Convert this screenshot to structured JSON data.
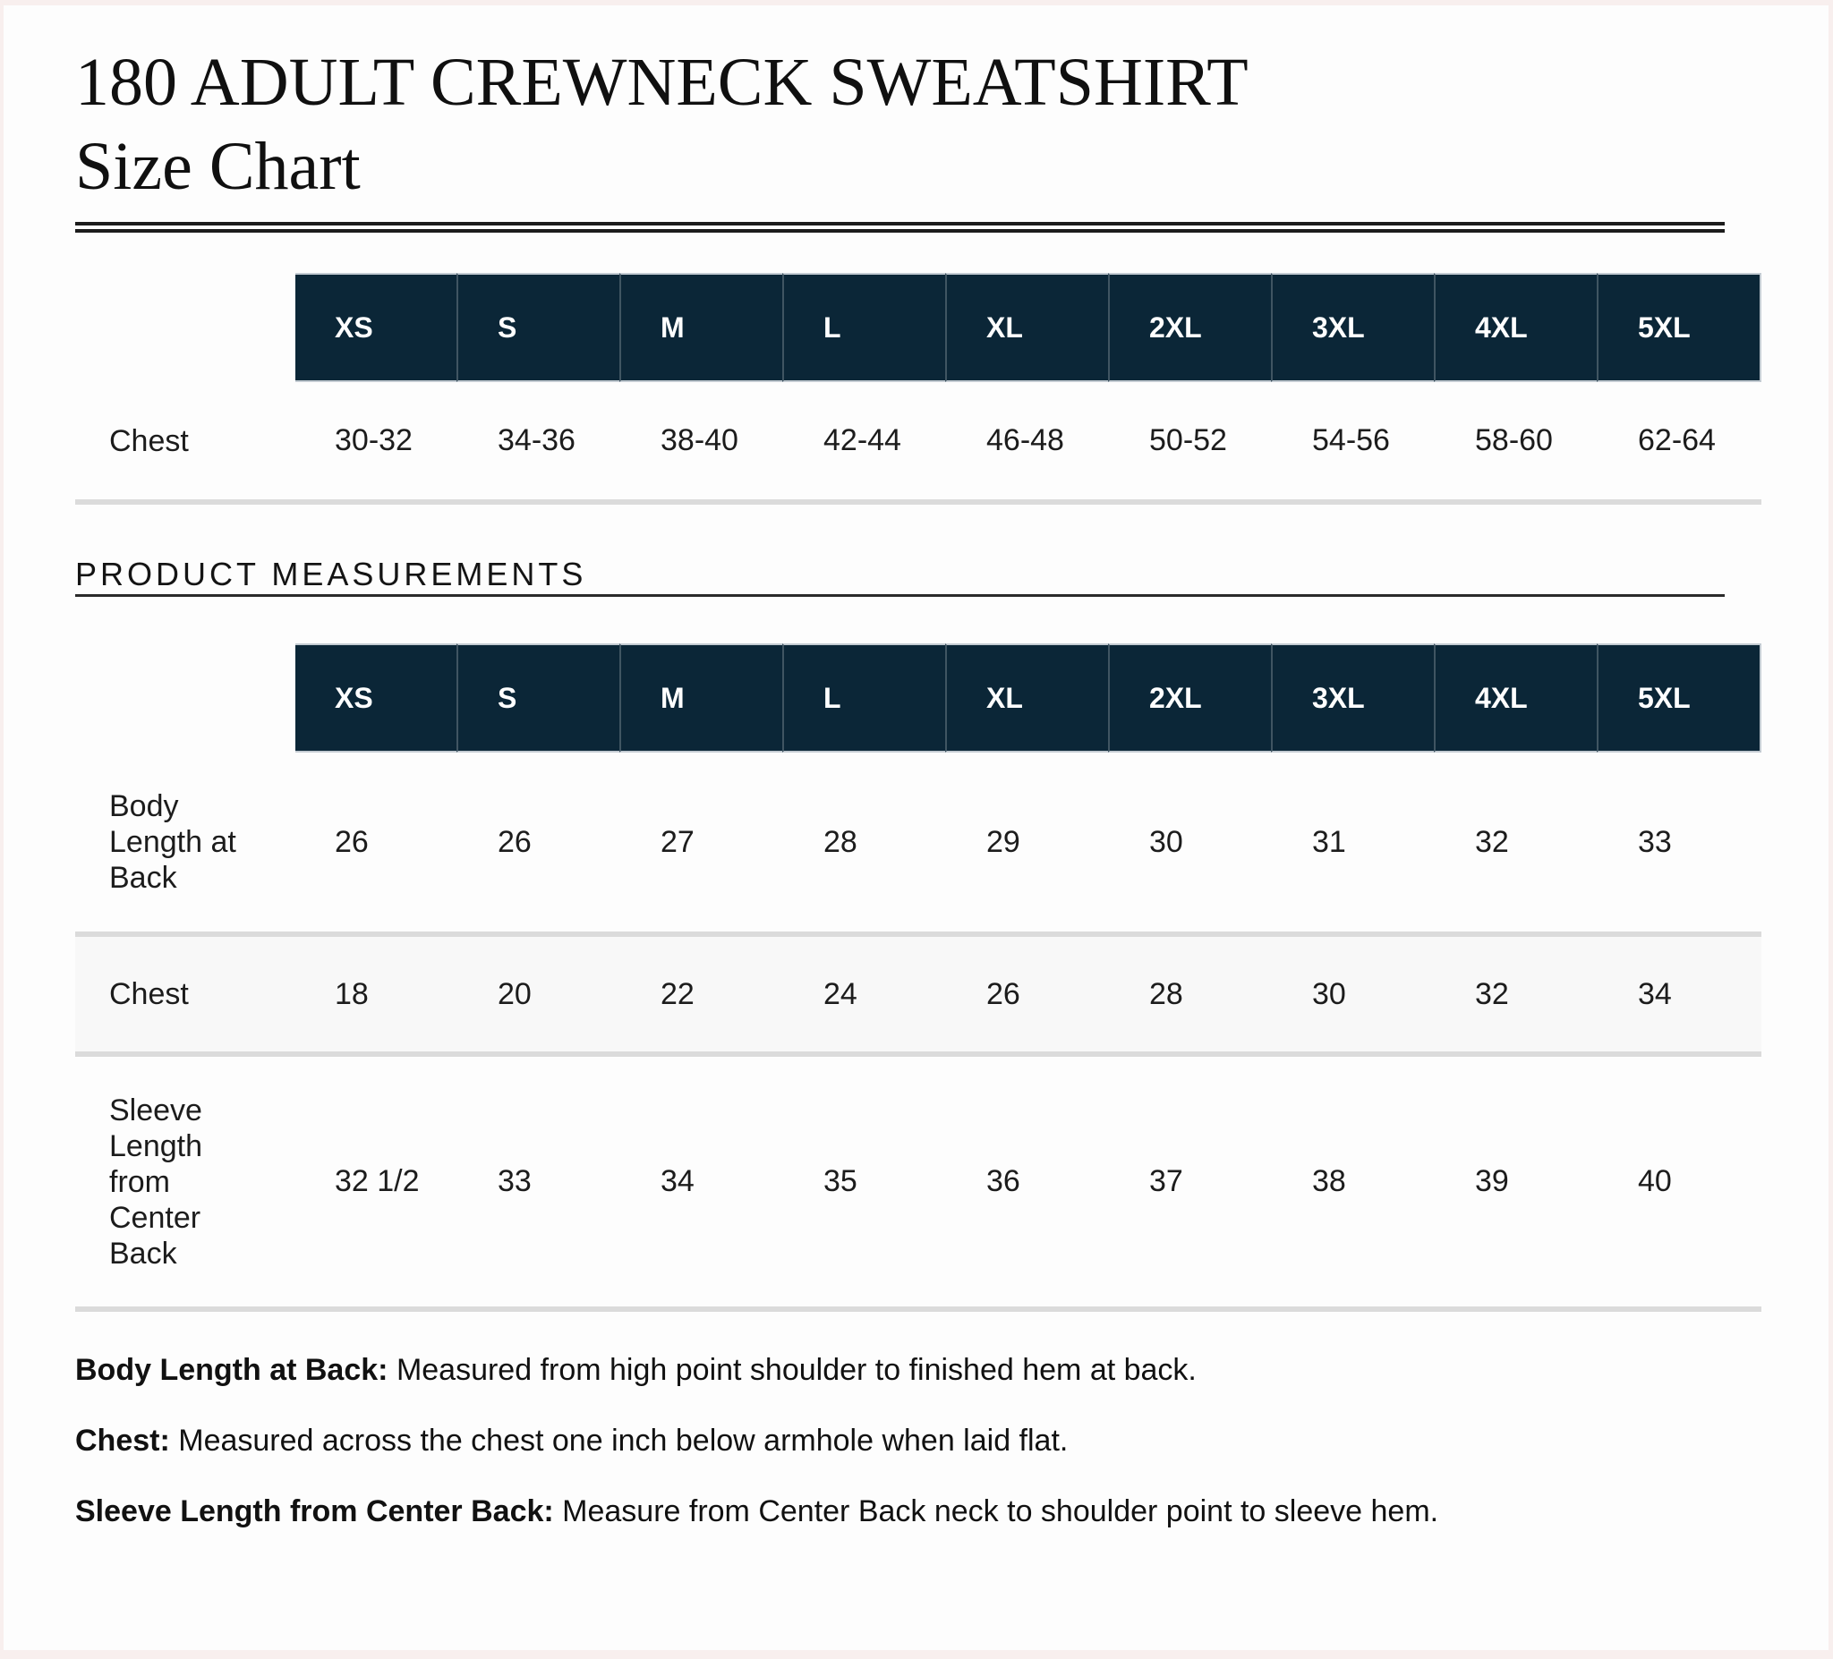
{
  "header": {
    "title_line1": "180 ADULT CREWNECK SWEATSHIRT",
    "title_line2": "Size Chart"
  },
  "sizes": [
    "XS",
    "S",
    "M",
    "L",
    "XL",
    "2XL",
    "3XL",
    "4XL",
    "5XL"
  ],
  "size_chart_table": {
    "rows": [
      {
        "label": "Chest",
        "values": [
          "30-32",
          "34-36",
          "38-40",
          "42-44",
          "46-48",
          "50-52",
          "54-56",
          "58-60",
          "62-64"
        ]
      }
    ]
  },
  "section": {
    "heading": "PRODUCT MEASUREMENTS"
  },
  "measurements_table": {
    "rows": [
      {
        "label": "Body Length at Back",
        "values": [
          "26",
          "26",
          "27",
          "28",
          "29",
          "30",
          "31",
          "32",
          "33"
        ]
      },
      {
        "label": "Chest",
        "values": [
          "18",
          "20",
          "22",
          "24",
          "26",
          "28",
          "30",
          "32",
          "34"
        ]
      },
      {
        "label": "Sleeve Length from Center Back",
        "values": [
          "32 1/2",
          "33",
          "34",
          "35",
          "36",
          "37",
          "38",
          "39",
          "40"
        ]
      }
    ]
  },
  "notes": [
    {
      "term": "Body Length at Back:",
      "definition": "Measured from high point shoulder to finished hem at back."
    },
    {
      "term": "Chest:",
      "definition": "Measured across the chest one inch below armhole when laid flat."
    },
    {
      "term": "Sleeve Length from Center Back:",
      "definition": "Measure from Center Back neck to shoulder point to sleeve hem."
    }
  ],
  "colors": {
    "header_bg": "#0b2637",
    "header_text": "#ffffff",
    "row_divider": "#dbdbdb",
    "alt_row_bg": "#f8f8f8",
    "rule_color": "#1c1c1c",
    "page_edge_bg": "#f8efee"
  }
}
